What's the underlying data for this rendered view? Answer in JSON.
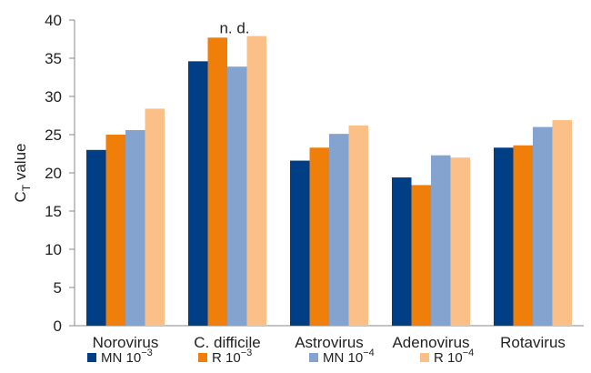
{
  "chart_data": {
    "type": "bar",
    "title": "",
    "xlabel": "",
    "ylabel": "C",
    "ylabel_sub": "T",
    "ylabel_suffix": " value",
    "ylim": [
      0,
      40
    ],
    "yticks": [
      0,
      5,
      10,
      15,
      20,
      25,
      30,
      35,
      40
    ],
    "grid": false,
    "legend_position": "bottom",
    "categories": [
      "Norovirus",
      "C. difficile",
      "Astrovirus",
      "Adenovirus",
      "Rotavirus"
    ],
    "series": [
      {
        "name": "MN 10",
        "exp": "−3",
        "color": "#003e86",
        "values": [
          23.0,
          34.6,
          21.6,
          19.4,
          23.3
        ]
      },
      {
        "name": "R 10",
        "exp": "−3",
        "color": "#f07f09",
        "values": [
          25.0,
          37.7,
          23.3,
          18.4,
          23.6
        ]
      },
      {
        "name": "MN 10",
        "exp": "−4",
        "color": "#85a3cf",
        "values": [
          25.6,
          33.9,
          25.1,
          22.3,
          26.0
        ]
      },
      {
        "name": "R 10",
        "exp": "−4",
        "color": "#fbc088",
        "values": [
          28.4,
          37.9,
          26.2,
          22.0,
          26.9
        ]
      }
    ],
    "annotations": [
      {
        "text": "n. d.",
        "category_index": 1,
        "y": 38.3
      }
    ]
  }
}
